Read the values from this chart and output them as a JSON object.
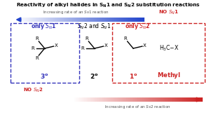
{
  "title": "Reactivity of alkyl halides in $\\mathbf{S_N}$1 and $\\mathbf{S_N}$2 substitution reactions",
  "sn1_label": "Increasing rate of an $S_N$1 reaction",
  "sn2_label": "Increasing rate of an $S_N$2 reaction",
  "no_sn1_text": "NO $S_N$1",
  "no_sn2_text": "NO $S_N$2",
  "box1_label": "only $S_N$1",
  "box1_degree": "$\\mathbf{3^o}$",
  "box2_label": "$S_N$2 and $S_N$1",
  "box2_degree": "$\\mathbf{2^o}$",
  "box3_label": "only $S_N$2",
  "box3_degree": "$\\mathbf{1^o}$",
  "methyl_label": "$\\mathbf{Methyl}$",
  "blue_box_color": "#3333bb",
  "red_box_color": "#cc2222",
  "arrow_blue": "#2244cc",
  "arrow_red": "#cc2222",
  "text_gray": "#555555"
}
